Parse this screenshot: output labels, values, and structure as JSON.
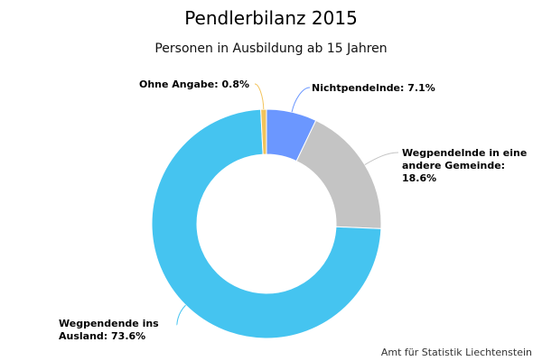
{
  "chart_data": {
    "type": "pie",
    "donut": true,
    "title": "Pendlerbilanz 2015",
    "subtitle": "Personen in Ausbildung ab 15 Jahren",
    "slices": [
      {
        "label": "Nichtpendelnde: 7.1%",
        "value": 7.1,
        "color": "#6b97ff"
      },
      {
        "label": "Wegpendelnde in eine andere Gemeinde: 18.6%",
        "value": 18.6,
        "color": "#c4c4c4"
      },
      {
        "label": "Wegpendende ins Ausland: 73.6%",
        "value": 73.6,
        "color": "#45c4f0"
      },
      {
        "label": "Ohne Angabe: 0.8%",
        "value": 0.8,
        "color": "#f2c35a"
      }
    ],
    "credit": "Amt für Statistik Liechtenstein"
  }
}
